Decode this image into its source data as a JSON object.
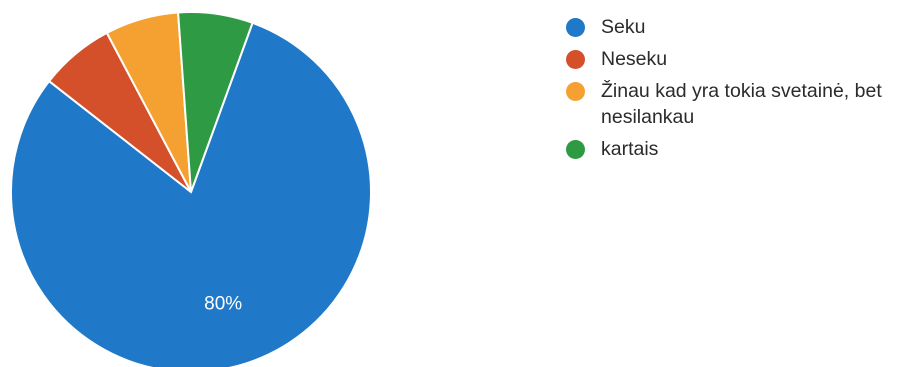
{
  "chart_data": {
    "type": "pie",
    "title": "",
    "categories": [
      "Seku",
      "Neseku",
      "Žinau kad yra tokia svetainė, bet nesilankau",
      "kartais"
    ],
    "values": [
      80,
      6.7,
      6.6,
      6.7
    ],
    "colors": [
      "#1f78c8",
      "#d4502a",
      "#f5a131",
      "#2e9a44"
    ],
    "data_labels": [
      "80%",
      "",
      "",
      ""
    ],
    "start_angle_deg": 20,
    "direction": "clockwise",
    "legend_position": "right",
    "legend": [
      {
        "label": "Seku",
        "color": "#1f78c8"
      },
      {
        "label": "Neseku",
        "color": "#d4502a"
      },
      {
        "label": "Žinau kad yra tokia svetainė, bet nesilankau",
        "color": "#f5a131"
      },
      {
        "label": "kartais",
        "color": "#2e9a44"
      }
    ]
  }
}
